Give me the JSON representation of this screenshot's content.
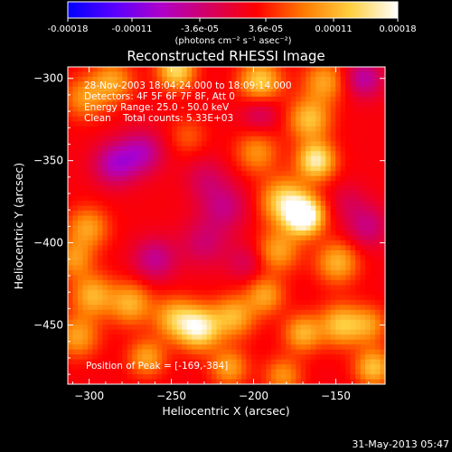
{
  "chart_data": {
    "type": "heatmap",
    "title": "Reconstructed RHESSI Image",
    "xlabel": "Heliocentric X (arcsec)",
    "ylabel": "Heliocentric Y (arcsec)",
    "xlim": [
      -313,
      -120
    ],
    "ylim": [
      -486,
      -293
    ],
    "xticks": [
      -300,
      -250,
      -200,
      -150
    ],
    "yticks": [
      -300,
      -350,
      -400,
      -450
    ],
    "colorbar": {
      "min": -0.00018,
      "max": 0.00018,
      "ticks": [
        "-0.00018",
        "-0.00011",
        "-3.6e-05",
        "3.6e-05",
        "0.00011",
        "0.00018"
      ],
      "unit_label": "(photons cm⁻² s⁻¹ asec⁻²)",
      "colormap": [
        "#0000ff",
        "#5a00ff",
        "#b000c8",
        "#d40060",
        "#ff0000",
        "#ff7a00",
        "#ffd040",
        "#ffffff"
      ]
    },
    "background_value": 2e-05,
    "sources": [
      {
        "x": -169,
        "y": -384,
        "peak": 0.00018,
        "sigma": 8
      },
      {
        "x": -181,
        "y": -375,
        "peak": 0.00012,
        "sigma": 10
      },
      {
        "x": -162,
        "y": -350,
        "peak": 0.00014,
        "sigma": 8
      },
      {
        "x": -166,
        "y": -325,
        "peak": 0.0001,
        "sigma": 9
      },
      {
        "x": -157,
        "y": -302,
        "peak": 8e-05,
        "sigma": 9
      },
      {
        "x": -196,
        "y": -302,
        "peak": 0.00011,
        "sigma": 9
      },
      {
        "x": -198,
        "y": -345,
        "peak": 7e-05,
        "sigma": 9
      },
      {
        "x": -247,
        "y": -295,
        "peak": 0.00012,
        "sigma": 8
      },
      {
        "x": -286,
        "y": -302,
        "peak": 8e-05,
        "sigma": 9
      },
      {
        "x": -303,
        "y": -312,
        "peak": 7e-05,
        "sigma": 9
      },
      {
        "x": -301,
        "y": -391,
        "peak": 8e-05,
        "sigma": 9
      },
      {
        "x": -309,
        "y": -410,
        "peak": 7e-05,
        "sigma": 8
      },
      {
        "x": -298,
        "y": -432,
        "peak": 9e-05,
        "sigma": 9
      },
      {
        "x": -275,
        "y": -437,
        "peak": 9e-05,
        "sigma": 9
      },
      {
        "x": -307,
        "y": -457,
        "peak": 8e-05,
        "sigma": 9
      },
      {
        "x": -233,
        "y": -452,
        "peak": 0.00014,
        "sigma": 9
      },
      {
        "x": -248,
        "y": -446,
        "peak": 9e-05,
        "sigma": 9
      },
      {
        "x": -212,
        "y": -445,
        "peak": 9e-05,
        "sigma": 9
      },
      {
        "x": -193,
        "y": -432,
        "peak": 8e-05,
        "sigma": 8
      },
      {
        "x": -185,
        "y": -405,
        "peak": 8e-05,
        "sigma": 9
      },
      {
        "x": -149,
        "y": -412,
        "peak": 9e-05,
        "sigma": 9
      },
      {
        "x": -147,
        "y": -450,
        "peak": 0.0001,
        "sigma": 9
      },
      {
        "x": -170,
        "y": -455,
        "peak": 9e-05,
        "sigma": 8
      },
      {
        "x": -127,
        "y": -476,
        "peak": 0.0001,
        "sigma": 8
      },
      {
        "x": -130,
        "y": -450,
        "peak": 7e-05,
        "sigma": 8
      },
      {
        "x": -215,
        "y": -476,
        "peak": 8e-05,
        "sigma": 8
      },
      {
        "x": -182,
        "y": -481,
        "peak": 7e-05,
        "sigma": 8
      },
      {
        "x": -265,
        "y": -470,
        "peak": 8e-05,
        "sigma": 8
      },
      {
        "x": -240,
        "y": -335,
        "peak": 4e-05,
        "sigma": 8
      },
      {
        "x": -268,
        "y": -345,
        "peak": -8e-05,
        "sigma": 9
      },
      {
        "x": -284,
        "y": -352,
        "peak": -9e-05,
        "sigma": 9
      },
      {
        "x": -218,
        "y": -378,
        "peak": -6e-05,
        "sigma": 10
      },
      {
        "x": -260,
        "y": -410,
        "peak": -7e-05,
        "sigma": 9
      },
      {
        "x": -230,
        "y": -400,
        "peak": -5e-05,
        "sigma": 10
      },
      {
        "x": -196,
        "y": -321,
        "peak": -5e-05,
        "sigma": 8
      },
      {
        "x": -133,
        "y": -300,
        "peak": -8e-05,
        "sigma": 8
      },
      {
        "x": -131,
        "y": -390,
        "peak": -6e-05,
        "sigma": 9
      },
      {
        "x": -229,
        "y": -361,
        "peak": -4e-05,
        "sigma": 9
      },
      {
        "x": -205,
        "y": -412,
        "peak": -4e-05,
        "sigma": 8
      },
      {
        "x": -142,
        "y": -375,
        "peak": -3e-05,
        "sigma": 8
      }
    ]
  },
  "annotation": {
    "time_range": "28-Nov-2003 18:04:24.000 to 18:09:14.000",
    "detectors": "Detectors: 4F 5F 6F 7F 8F, Att 0",
    "energy_range": "Energy Range: 25.0 - 50.0 keV",
    "clean_line": "Clean    Total counts: 5.33E+03",
    "peak_position": "Position of Peak = [-169,-384]"
  },
  "footer_date": "31-May-2013 05:47",
  "colors": {
    "background": "#000000",
    "foreground": "#ffffff"
  }
}
